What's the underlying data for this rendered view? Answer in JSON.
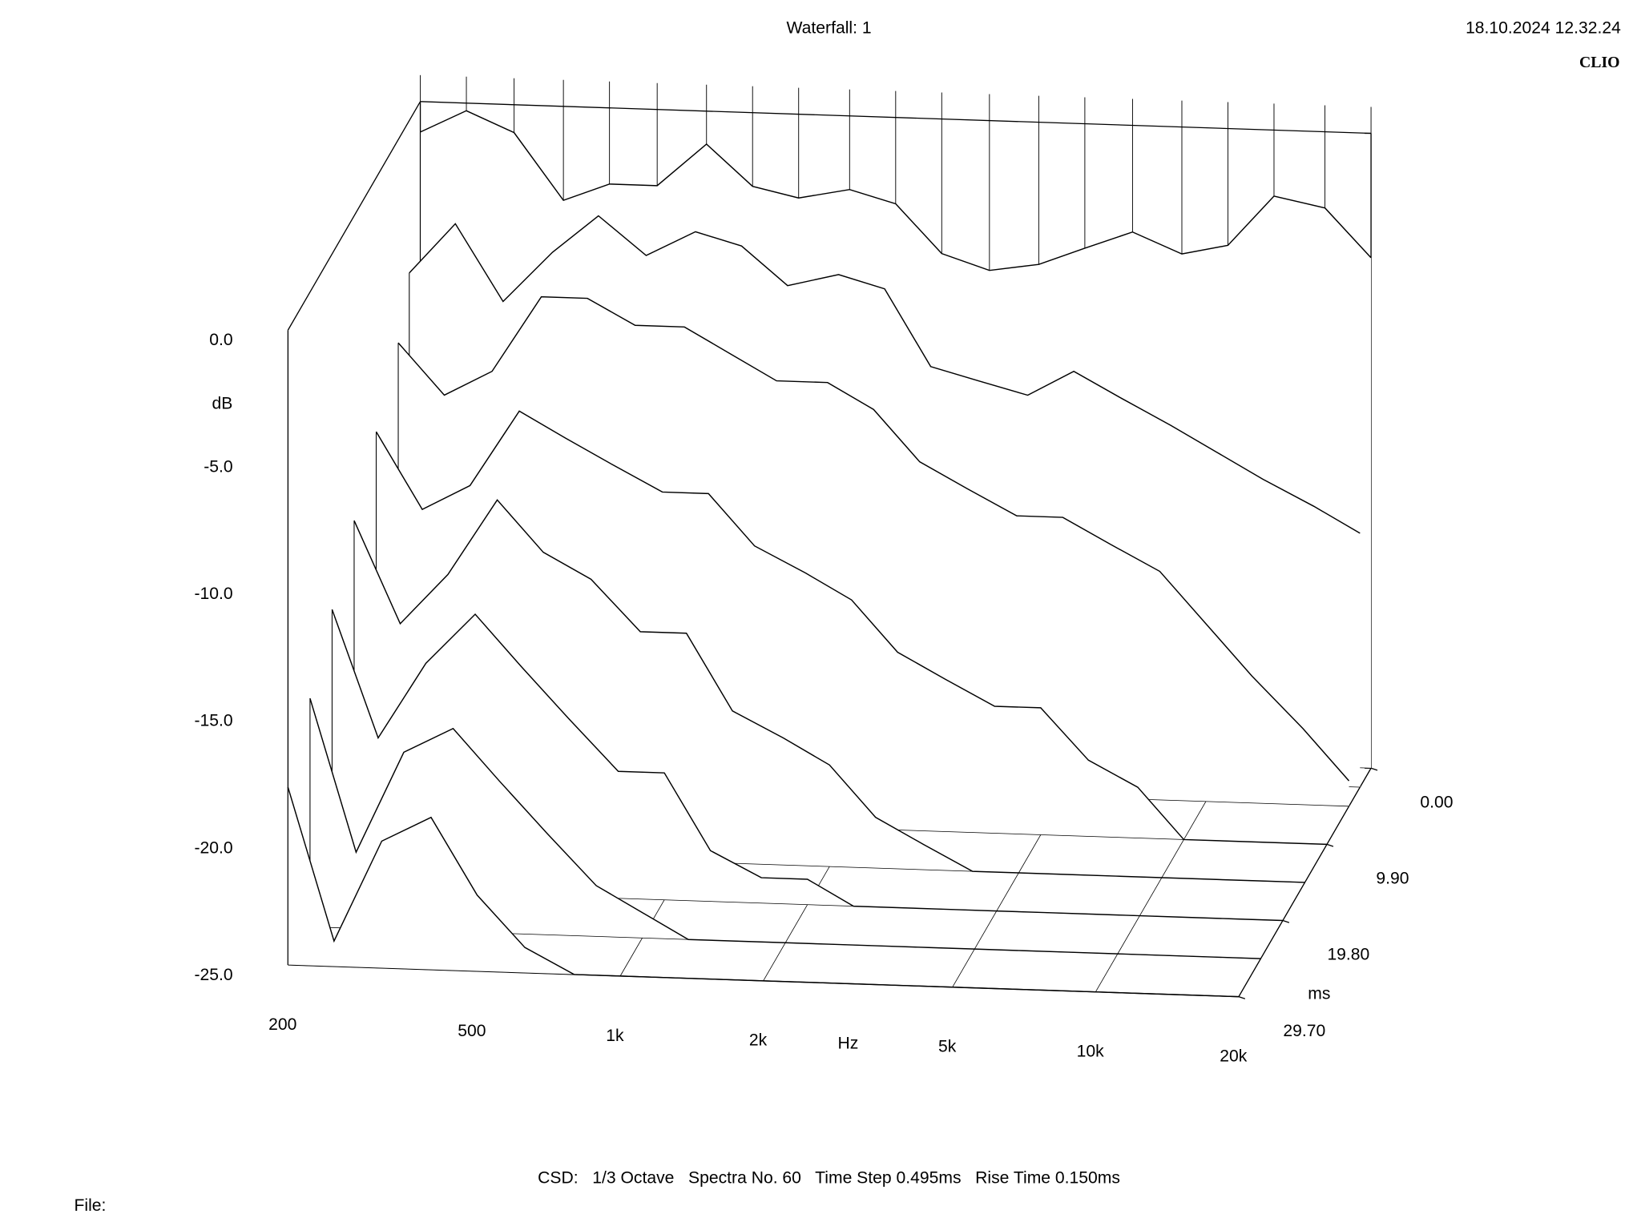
{
  "header": {
    "timestamp": "18.10.2024 12.32.24",
    "brand": "CLIO"
  },
  "footer": {
    "settings": "CSD:   1/3 Octave   Spectra No. 60   Time Step 0.495ms   Rise Time 0.150ms",
    "file": "File:"
  },
  "chart_data": {
    "type": "waterfall",
    "title": "Waterfall: 1",
    "x_label": "Hz",
    "y_label": "dB",
    "z_label": "ms",
    "log_x": true,
    "color": "#000000",
    "xlim": [
      200,
      20000
    ],
    "xticks": [
      200,
      500,
      {
        "value": 1000,
        "label": "1k"
      },
      {
        "value": 2000,
        "label": "2k"
      },
      {
        "value": 5000,
        "label": "5k"
      },
      {
        "value": 10000,
        "label": "10k"
      },
      {
        "value": 20000,
        "label": "20k"
      }
    ],
    "ylim": [
      -25,
      0
    ],
    "yticks": [
      {
        "value": 0,
        "label": "0.0"
      },
      {
        "value": -5,
        "label": "-5.0"
      },
      {
        "value": -10,
        "label": "-10.0"
      },
      {
        "value": -15,
        "label": "-15.0"
      },
      {
        "value": -20,
        "label": "-20.0"
      },
      {
        "value": -25,
        "label": "-25.0"
      }
    ],
    "zlim": [
      0,
      29.7
    ],
    "zticks": [
      {
        "value": 0,
        "label": "0.00"
      },
      {
        "value": 9.9,
        "label": "9.90"
      },
      {
        "value": 19.8,
        "label": "19.80"
      },
      {
        "value": 29.7,
        "label": "29.70"
      }
    ],
    "x": [
      200,
      250,
      315,
      400,
      500,
      630,
      800,
      1000,
      1250,
      1600,
      2000,
      2500,
      3150,
      4000,
      5000,
      6300,
      8000,
      10000,
      12500,
      16000,
      20000
    ],
    "series": [
      {
        "z": 0,
        "values": [
          -1.2,
          -0.3,
          -1.1,
          -3.7,
          -3,
          -3,
          -1.3,
          -2.9,
          -3.3,
          -2.9,
          -3.4,
          -5.3,
          -5.9,
          -5.6,
          -4.9,
          -4.2,
          -5,
          -4.6,
          -2.6,
          -3,
          -4.9
        ]
      },
      {
        "z": 2.475,
        "values": [
          -6,
          -4,
          -7,
          -5,
          -3.5,
          -5,
          -4,
          -4.5,
          -6,
          -5.5,
          -6,
          -9,
          -9.5,
          -10,
          -9,
          -10,
          -11,
          -12,
          -13,
          -14,
          -15
        ]
      },
      {
        "z": 4.95,
        "values": [
          -8,
          -10,
          -9,
          -6,
          -6,
          -7,
          -7,
          -8,
          -9,
          -9,
          -10,
          -12,
          -13,
          -14,
          -14,
          -15,
          -16,
          -18,
          -20,
          -22,
          -24
        ]
      },
      {
        "z": 9.9,
        "values": [
          -10,
          -13,
          -12,
          -9,
          -10,
          -11,
          -12,
          -12,
          -14,
          -15,
          -16,
          -18,
          -19,
          -20,
          -20,
          -22,
          -23,
          -25,
          -25,
          -25,
          -25
        ]
      },
      {
        "z": 14.85,
        "values": [
          -12,
          -16,
          -14,
          -11,
          -13,
          -14,
          -16,
          -16,
          -19,
          -20,
          -21,
          -23,
          -24,
          -25,
          -25,
          -25,
          -25,
          -25,
          -25,
          -25,
          -25
        ]
      },
      {
        "z": 19.8,
        "values": [
          -14,
          -19,
          -16,
          -14,
          -16,
          -18,
          -20,
          -20,
          -23,
          -24,
          -24,
          -25,
          -25,
          -25,
          -25,
          -25,
          -25,
          -25,
          -25,
          -25,
          -25
        ]
      },
      {
        "z": 24.75,
        "values": [
          -16,
          -22,
          -18,
          -17,
          -19,
          -21,
          -23,
          -24,
          -25,
          -25,
          -25,
          -25,
          -25,
          -25,
          -25,
          -25,
          -25,
          -25,
          -25,
          -25,
          -25
        ]
      },
      {
        "z": 29.7,
        "values": [
          -18,
          -24,
          -20,
          -19,
          -22,
          -24,
          -25,
          -25,
          -25,
          -25,
          -25,
          -25,
          -25,
          -25,
          -25,
          -25,
          -25,
          -25,
          -25,
          -25,
          -25
        ]
      }
    ]
  }
}
